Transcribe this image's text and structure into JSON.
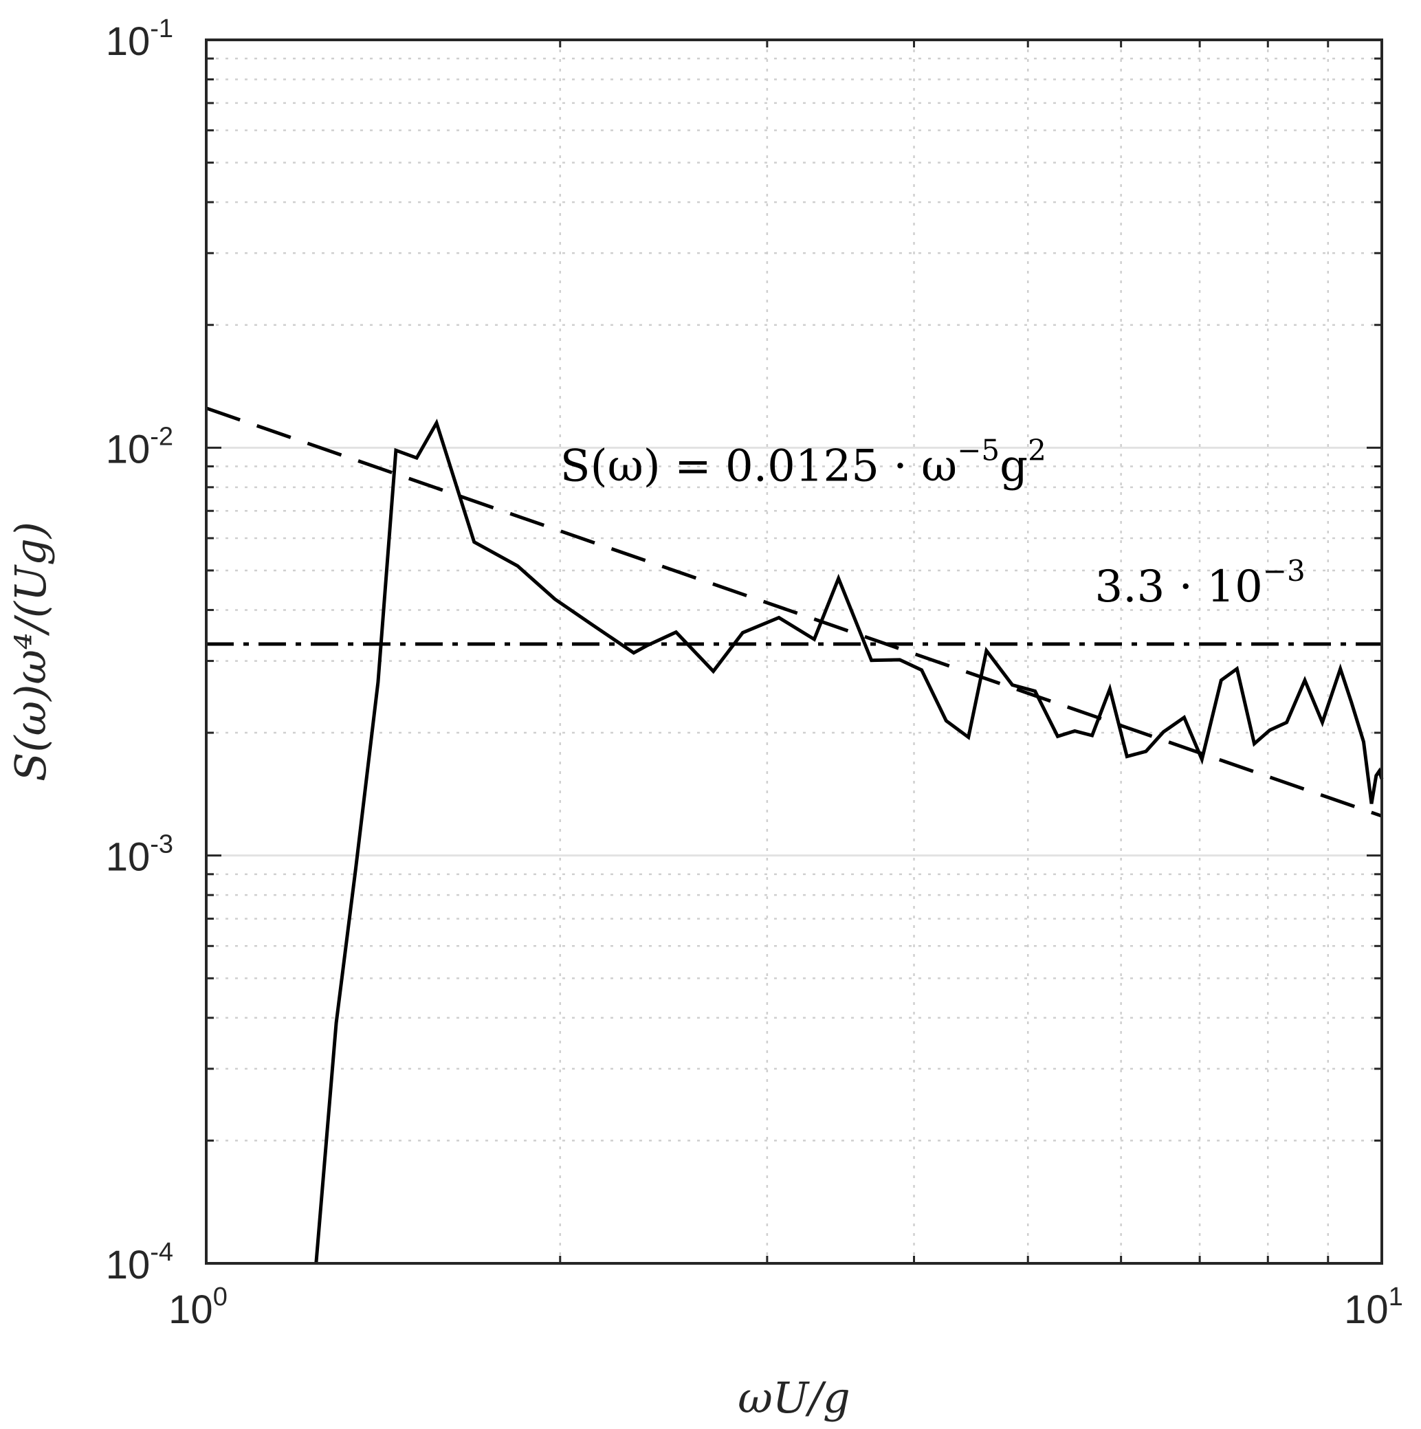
{
  "chart_data": {
    "type": "line",
    "xscale": "log",
    "yscale": "log",
    "xlim": [
      1,
      10
    ],
    "ylim": [
      0.0001,
      0.1
    ],
    "xlabel": "ωU/g",
    "ylabel": "S(ω)ω⁴/(Ug)",
    "grid": true,
    "x_ticks": [
      {
        "base": "10",
        "exp": "0",
        "value": 1
      },
      {
        "base": "10",
        "exp": "1",
        "value": 10
      }
    ],
    "y_ticks": [
      {
        "base": "10",
        "exp": "-4",
        "value": 0.0001
      },
      {
        "base": "10",
        "exp": "-3",
        "value": 0.001
      },
      {
        "base": "10",
        "exp": "-2",
        "value": 0.01
      },
      {
        "base": "10",
        "exp": "-1",
        "value": 0.1
      }
    ],
    "series": [
      {
        "style": "solid",
        "color": "#000000",
        "points": [
          [
            1.24,
            0.0001
          ],
          [
            1.29,
            0.000389
          ],
          [
            1.34,
            0.000925
          ],
          [
            1.4,
            0.00266
          ],
          [
            1.45,
            0.00985
          ],
          [
            1.51,
            0.00944
          ],
          [
            1.57,
            0.0115
          ],
          [
            1.69,
            0.00587
          ],
          [
            1.84,
            0.00513
          ],
          [
            1.98,
            0.00425
          ],
          [
            2.13,
            0.00368
          ],
          [
            2.31,
            0.00314
          ],
          [
            2.37,
            0.00327
          ],
          [
            2.51,
            0.00353
          ],
          [
            2.7,
            0.00283
          ],
          [
            2.86,
            0.00352
          ],
          [
            3.07,
            0.00383
          ],
          [
            3.29,
            0.00339
          ],
          [
            3.45,
            0.00478
          ],
          [
            3.68,
            0.00301
          ],
          [
            3.89,
            0.00302
          ],
          [
            4.06,
            0.00285
          ],
          [
            4.26,
            0.00214
          ],
          [
            4.45,
            0.00195
          ],
          [
            4.61,
            0.00318
          ],
          [
            4.85,
            0.00262
          ],
          [
            5.07,
            0.00253
          ],
          [
            5.3,
            0.00196
          ],
          [
            5.48,
            0.00202
          ],
          [
            5.67,
            0.00197
          ],
          [
            5.87,
            0.00256
          ],
          [
            6.07,
            0.00175
          ],
          [
            6.3,
            0.0018
          ],
          [
            6.52,
            0.00201
          ],
          [
            6.79,
            0.00218
          ],
          [
            7.03,
            0.00172
          ],
          [
            7.3,
            0.00269
          ],
          [
            7.53,
            0.00287
          ],
          [
            7.79,
            0.00188
          ],
          [
            8.03,
            0.00203
          ],
          [
            8.3,
            0.00212
          ],
          [
            8.6,
            0.00269
          ],
          [
            8.9,
            0.00212
          ],
          [
            9.22,
            0.00287
          ],
          [
            9.42,
            0.00238
          ],
          [
            9.65,
            0.0019
          ],
          [
            9.8,
            0.00134
          ],
          [
            9.89,
            0.00157
          ],
          [
            9.95,
            0.00161
          ],
          [
            10.0,
            0.00154
          ]
        ]
      },
      {
        "style": "dashed",
        "color": "#000000",
        "name": "S(ω) = 0.0125·ω⁻⁵g²",
        "points": [
          [
            1,
            0.0125
          ],
          [
            10,
            0.00125
          ]
        ]
      },
      {
        "style": "dash-dot",
        "color": "#000000",
        "name": "3.3·10⁻³",
        "points": [
          [
            1,
            0.0033
          ],
          [
            10,
            0.0033
          ]
        ]
      }
    ],
    "annotations": {
      "dashed_label": {
        "main": "S(ω) = 0.0125 · ω",
        "exp1": "−5",
        "mid": "g",
        "exp2": "2",
        "x": 2.0,
        "y": 0.0083
      },
      "dashdot_label": {
        "main": "3.3 · 10",
        "exp": "−3",
        "x": 5.7,
        "y": 0.0042
      }
    }
  }
}
